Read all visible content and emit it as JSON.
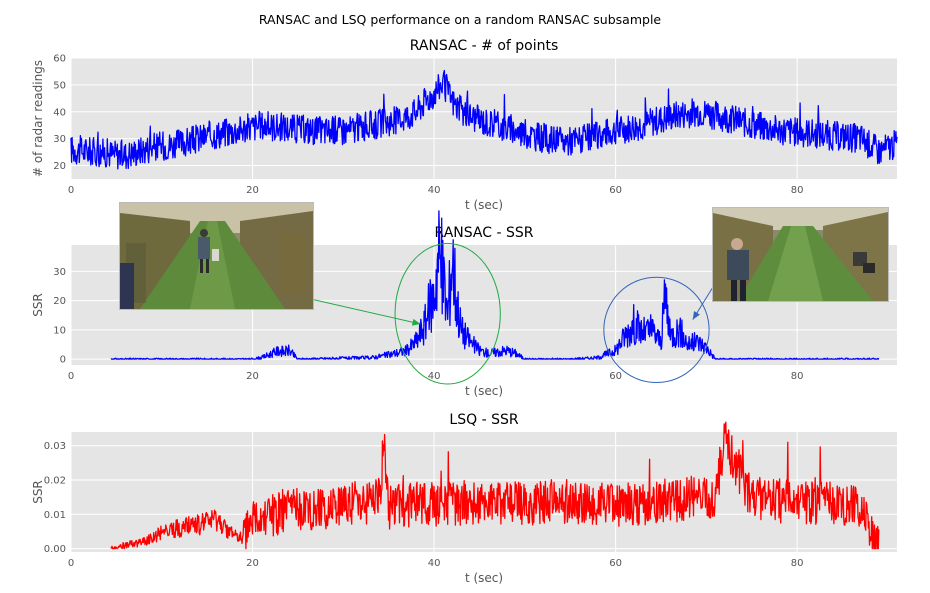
{
  "figure": {
    "suptitle": "RANSAC and LSQ performance on a random RANSAC subsample"
  },
  "chart_data": [
    {
      "type": "line",
      "title": "RANSAC - # of points",
      "xlabel": "t (sec)",
      "ylabel": "# of radar readings",
      "xlim": [
        0,
        91
      ],
      "ylim": [
        15,
        60
      ],
      "xticks": [
        "0",
        "20",
        "40",
        "60",
        "80"
      ],
      "yticks": [
        "20",
        "30",
        "40",
        "50",
        "60"
      ],
      "grid": true,
      "series": [
        {
          "color": "#0000ff",
          "x": [
            0,
            3,
            6,
            9,
            12,
            15,
            18,
            21,
            24,
            27,
            30,
            33,
            36,
            38,
            39,
            40,
            41,
            42,
            43,
            45,
            48,
            51,
            54,
            57,
            60,
            63,
            66,
            69,
            72,
            75,
            78,
            81,
            84,
            87,
            89,
            91
          ],
          "y": [
            26,
            25,
            24,
            27,
            28,
            31,
            33,
            35,
            34,
            33,
            33,
            35,
            37,
            40,
            44,
            47,
            51,
            44,
            40,
            37,
            34,
            31,
            29,
            30,
            33,
            35,
            38,
            40,
            38,
            35,
            33,
            32,
            31,
            30,
            25,
            28
          ]
        }
      ]
    },
    {
      "type": "line",
      "title": "RANSAC - SSR",
      "xlabel": "t (sec)",
      "ylabel": "SSR",
      "xlim": [
        0,
        91
      ],
      "ylim": [
        -2,
        39
      ],
      "xticks": [
        "0",
        "20",
        "40",
        "60",
        "80"
      ],
      "yticks": [
        "0",
        "10",
        "20",
        "30"
      ],
      "grid": true,
      "series": [
        {
          "color": "#0000ff",
          "x": [
            4.4,
            20,
            21,
            23,
            23.5,
            24,
            25,
            33,
            35,
            37,
            38,
            39,
            39.5,
            40,
            40.5,
            41,
            41.5,
            42,
            42.5,
            43,
            44,
            45,
            46,
            48,
            49,
            50,
            55,
            58,
            60,
            61,
            62,
            63,
            64,
            65,
            65.5,
            66,
            67,
            68,
            69,
            70,
            71,
            75,
            80,
            89
          ],
          "y": [
            0,
            0,
            0.5,
            3,
            2.5,
            3,
            0,
            0.5,
            1.5,
            3,
            6,
            12,
            18,
            22,
            37,
            28,
            15,
            36,
            20,
            10,
            6,
            3,
            2,
            3,
            2,
            0,
            0,
            0.5,
            3,
            8,
            12,
            9,
            10,
            6,
            22,
            8,
            10,
            5,
            6,
            4,
            0,
            0,
            0,
            0
          ]
        }
      ]
    },
    {
      "type": "line",
      "title": "LSQ - SSR",
      "xlabel": "t (sec)",
      "ylabel": "SSR",
      "xlim": [
        0,
        91
      ],
      "ylim": [
        -0.001,
        0.034
      ],
      "xticks": [
        "0",
        "20",
        "40",
        "60",
        "80"
      ],
      "yticks": [
        "0.00",
        "0.01",
        "0.02",
        "0.03"
      ],
      "grid": true,
      "series": [
        {
          "color": "#ff0000",
          "x": [
            4.4,
            6,
            8,
            9,
            10,
            12,
            14,
            16,
            17,
            18,
            19,
            20,
            22,
            25,
            28,
            31,
            34,
            34.5,
            35,
            38,
            42,
            46,
            50,
            54,
            57,
            60,
            63,
            66,
            69,
            71,
            72,
            75,
            78,
            81,
            84,
            87,
            88,
            88.5,
            89
          ],
          "y": [
            0,
            0.001,
            0.002,
            0.003,
            0.005,
            0.006,
            0.007,
            0.008,
            0.006,
            0.004,
            0.003,
            0.008,
            0.01,
            0.012,
            0.012,
            0.013,
            0.014,
            0.031,
            0.012,
            0.013,
            0.013,
            0.014,
            0.013,
            0.014,
            0.013,
            0.013,
            0.013,
            0.014,
            0.015,
            0.015,
            0.032,
            0.014,
            0.014,
            0.013,
            0.013,
            0.012,
            0.005,
            0.001,
            0
          ]
        }
      ]
    }
  ],
  "annotations": [
    {
      "panel": 1,
      "kind": "ellipse",
      "color": "#22aa44",
      "cx": 41.5,
      "cy": 15.5,
      "rx": 5.8,
      "ry": 24
    },
    {
      "panel": 1,
      "kind": "ellipse",
      "color": "#3366bb",
      "cx": 64.5,
      "cy": 10,
      "rx": 5.8,
      "ry": 18
    },
    {
      "panel": 1,
      "kind": "arrow",
      "color": "#22aa44",
      "from": [
        21.5,
        24
      ],
      "to": [
        38.5,
        12
      ]
    },
    {
      "panel": 1,
      "kind": "arrow",
      "color": "#3366bb",
      "from": [
        71,
        26
      ],
      "to": [
        68.5,
        13.5
      ]
    }
  ],
  "photos": [
    {
      "name": "field-photo-left"
    },
    {
      "name": "field-photo-right"
    }
  ]
}
